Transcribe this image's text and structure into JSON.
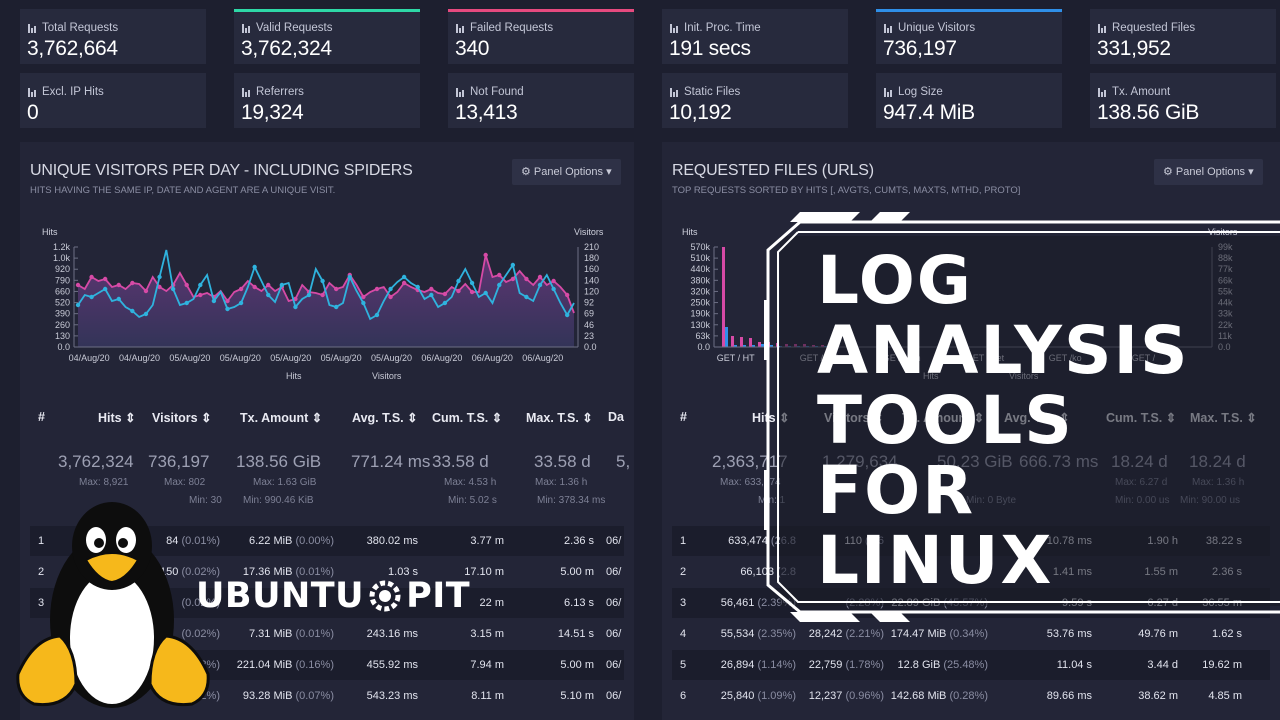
{
  "stats_left": [
    {
      "label": "Total Requests",
      "value": "3,762,664",
      "accent": ""
    },
    {
      "label": "Valid Requests",
      "value": "3,762,324",
      "accent": "#2ed8a7"
    },
    {
      "label": "Failed Requests",
      "value": "340",
      "accent": "#e64a7f"
    },
    {
      "label": "Excl. IP Hits",
      "value": "0",
      "accent": ""
    },
    {
      "label": "Referrers",
      "value": "19,324",
      "accent": ""
    },
    {
      "label": "Not Found",
      "value": "13,413",
      "accent": ""
    }
  ],
  "stats_right": [
    {
      "label": "Init. Proc. Time",
      "value": "191 secs",
      "accent": ""
    },
    {
      "label": "Unique Visitors",
      "value": "736,197",
      "accent": "#2f8fe8"
    },
    {
      "label": "Requested Files",
      "value": "331,952",
      "accent": ""
    },
    {
      "label": "Static Files",
      "value": "10,192",
      "accent": ""
    },
    {
      "label": "Log Size",
      "value": "947.4 MiB",
      "accent": ""
    },
    {
      "label": "Tx. Amount",
      "value": "138.56 GiB",
      "accent": ""
    }
  ],
  "left_panel": {
    "title": "UNIQUE VISITORS PER DAY - INCLUDING SPIDERS",
    "subtitle": "HITS HAVING THE SAME IP, DATE AND AGENT ARE A UNIQUE VISIT.",
    "options": "⚙ Panel Options ▾",
    "headers": [
      "#",
      "Hits ⇕",
      "Visitors ⇕",
      "Tx. Amount ⇕",
      "Avg. T.S. ⇕",
      "Cum. T.S. ⇕",
      "Max. T.S. ⇕",
      "Da"
    ],
    "totals": [
      "3,762,324",
      "736,197",
      "138.56 GiB",
      "771.24 ms",
      "33.58 d",
      "33.58 d",
      "5,"
    ],
    "maxes": [
      "Max: 8,921",
      "Max: 802",
      "Max: 1.63 GiB",
      "Max: 4.53 h",
      "Max: 1.36 h"
    ],
    "mins": [
      "Min: 30",
      "Min: 990.46 KiB",
      "Min: 5.02 s",
      "Min: 378.34 ms"
    ],
    "rows": [
      {
        "n": "1",
        "visitors": "84",
        "vpct": "(0.01%)",
        "tx": "6.22 MiB",
        "txpct": "(0.00%)",
        "avg": "380.02 ms",
        "cum": "3.77 m",
        "max": "2.36 s",
        "date": "06/"
      },
      {
        "n": "2",
        "visitors": "150",
        "vpct": "(0.02%)",
        "tx": "17.36 MiB",
        "txpct": "(0.01%)",
        "avg": "1.03 s",
        "cum": "17.10 m",
        "max": "5.00 m",
        "date": "06/"
      },
      {
        "n": "3",
        "visitors": "",
        "vpct": "(0.02%)",
        "tx": "",
        "txpct": "",
        "avg": "",
        "cum": "22 m",
        "max": "6.13 s",
        "date": "06/"
      },
      {
        "n": "",
        "visitors": "",
        "vpct": "(0.02%)",
        "tx": "7.31 MiB",
        "txpct": "(0.01%)",
        "avg": "243.16 ms",
        "cum": "3.15 m",
        "max": "14.51 s",
        "date": "06/"
      },
      {
        "n": "",
        "visitors": "",
        "vpct": "(0.02%)",
        "tx": "221.04 MiB",
        "txpct": "(0.16%)",
        "avg": "455.92 ms",
        "cum": "7.94 m",
        "max": "5.00 m",
        "date": "06/"
      },
      {
        "n": "",
        "visitors": "",
        "vpct": "(0.02%)",
        "tx": "93.28 MiB",
        "txpct": "(0.07%)",
        "avg": "543.23 ms",
        "cum": "8.11 m",
        "max": "5.10 m",
        "date": "06/"
      }
    ]
  },
  "right_panel": {
    "title": "REQUESTED FILES (URLS)",
    "subtitle": "TOP REQUESTS SORTED BY HITS [, AVGTS, CUMTS, MAXTS, MTHD, PROTO]",
    "options": "⚙ Panel Options ▾",
    "headers": [
      "#",
      "Hits ⇕",
      "Visitors ⇕",
      "Tx. Amount ⇕",
      "Avg. T.S. ⇕",
      "Cum. T.S. ⇕",
      "Max. T.S. ⇕"
    ],
    "totals": [
      "2,363,717",
      "1,279,634",
      "50.23 GiB",
      "666.73 ms",
      "18.24 d",
      "18.24 d"
    ],
    "maxes": [
      "Max: 633,474",
      "Max: 6.27 d",
      "Max: 1.36 h"
    ],
    "mins": [
      "Min: 1",
      "Min: 0 Byte",
      "Min: 0.00 us",
      "Min: 90.00 us"
    ],
    "rows": [
      {
        "n": "1",
        "hits": "633,474",
        "hpct": "(26.8",
        "vis": "110",
        "vpct": "(8.6",
        "tx": "",
        "txpct": "",
        "avg": "10.78 ms",
        "cum": "1.90 h",
        "max": "38.22 s"
      },
      {
        "n": "2",
        "hits": "66,103",
        "hpct": "(2.8",
        "vis": "",
        "vpct": "",
        "tx": "",
        "txpct": "",
        "avg": "1.41 ms",
        "cum": "1.55 m",
        "max": "2.36 s"
      },
      {
        "n": "3",
        "hits": "56,461",
        "hpct": "(2.39%)",
        "vis": "",
        "vpct": "(2.28%)",
        "tx": "22.89 GiB",
        "txpct": "(45.57%)",
        "avg": "9.59 s",
        "cum": "6.27 d",
        "max": "36.55 m"
      },
      {
        "n": "4",
        "hits": "55,534",
        "hpct": "(2.35%)",
        "vis": "28,242",
        "vpct": "(2.21%)",
        "tx": "174.47 MiB",
        "txpct": "(0.34%)",
        "avg": "53.76 ms",
        "cum": "49.76 m",
        "max": "1.62 s"
      },
      {
        "n": "5",
        "hits": "26,894",
        "hpct": "(1.14%)",
        "vis": "22,759",
        "vpct": "(1.78%)",
        "tx": "12.8 GiB",
        "txpct": "(25.48%)",
        "avg": "11.04 s",
        "cum": "3.44 d",
        "max": "19.62 m"
      },
      {
        "n": "6",
        "hits": "25,840",
        "hpct": "(1.09%)",
        "vis": "12,237",
        "vpct": "(0.96%)",
        "tx": "142.68 MiB",
        "txpct": "(0.28%)",
        "avg": "89.66 ms",
        "cum": "38.62 m",
        "max": "4.85 m"
      }
    ]
  },
  "chart_left": {
    "type": "line",
    "y_left_label": "Hits",
    "y_right_label": "Visitors",
    "y_left_ticks": [
      "1.2k",
      "1.0k",
      "920",
      "790",
      "660",
      "520",
      "390",
      "260",
      "130",
      "0.0"
    ],
    "y_right_ticks": [
      "210",
      "180",
      "160",
      "140",
      "120",
      "92",
      "69",
      "46",
      "23",
      "0.0"
    ],
    "x_ticks": [
      "04/Aug/20",
      "04/Aug/20",
      "05/Aug/20",
      "05/Aug/20",
      "05/Aug/20",
      "05/Aug/20",
      "05/Aug/20",
      "06/Aug/20",
      "06/Aug/20",
      "06/Aug/20"
    ],
    "legend": [
      "Hits",
      "Visitors"
    ],
    "colors": {
      "hits": "#d64aa6",
      "visitors": "#2fb3de"
    }
  },
  "chart_right": {
    "type": "bar",
    "y_left_label": "Hits",
    "y_right_label": "Visitors",
    "y_left_ticks": [
      "570k",
      "510k",
      "440k",
      "380k",
      "320k",
      "250k",
      "190k",
      "130k",
      "63k",
      "0.0"
    ],
    "y_right_ticks": [
      "99k",
      "88k",
      "77k",
      "66k",
      "55k",
      "44k",
      "33k",
      "22k",
      "11k",
      "0.0"
    ],
    "x_ticks": [
      "GET / HT",
      "GET / HT",
      "GET / /kn",
      "GET / //et",
      "GET /ko",
      "GET /"
    ],
    "legend": [
      "Hits",
      "Visitors"
    ]
  },
  "overlay": {
    "title_lines": [
      "LOG",
      "ANALYSIS",
      "TOOLS",
      "FOR",
      "LINUX"
    ],
    "brand": "UBUNTU",
    "brand_tail": "PIT"
  }
}
